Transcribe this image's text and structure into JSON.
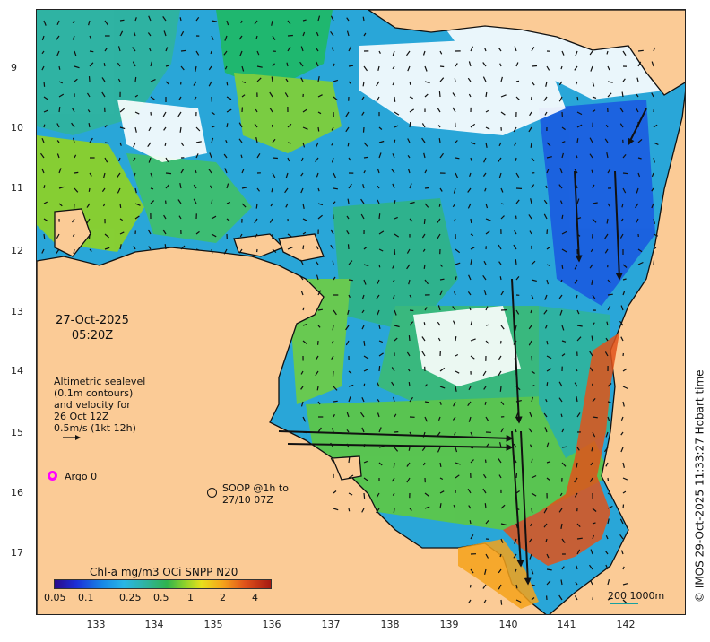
{
  "map": {
    "date": "27-Oct-2025",
    "time": "05:20Z",
    "altimetry_note": [
      "Altimetric sealevel",
      "(0.1m contours)",
      "and velocity for",
      "26 Oct 12Z",
      "0.5m/s (1kt 12h)"
    ],
    "argo_label": "Argo 0",
    "soop_label": [
      "SOOP @1h to",
      "27/10 07Z"
    ],
    "colorbar_title": "Chl-a mg/m3 OCi SNPP N20",
    "colorbar_ticks": [
      "0.05",
      "0.1",
      "0.25",
      "0.5",
      "1",
      "2",
      "4"
    ],
    "scale_label": "200  1000m",
    "credit": "© IMOS 29-Oct-2025 11:33:27 Hobart time",
    "lat_ticks": [
      "9",
      "10",
      "11",
      "12",
      "13",
      "14",
      "15",
      "16",
      "17"
    ],
    "lon_ticks": [
      "133",
      "134",
      "135",
      "136",
      "137",
      "138",
      "139",
      "140",
      "141",
      "142"
    ],
    "colors": {
      "land": "#fbcb96",
      "coastline": "#111111",
      "argo": "#ff00ff",
      "scalebar": "#18a0a0"
    }
  }
}
